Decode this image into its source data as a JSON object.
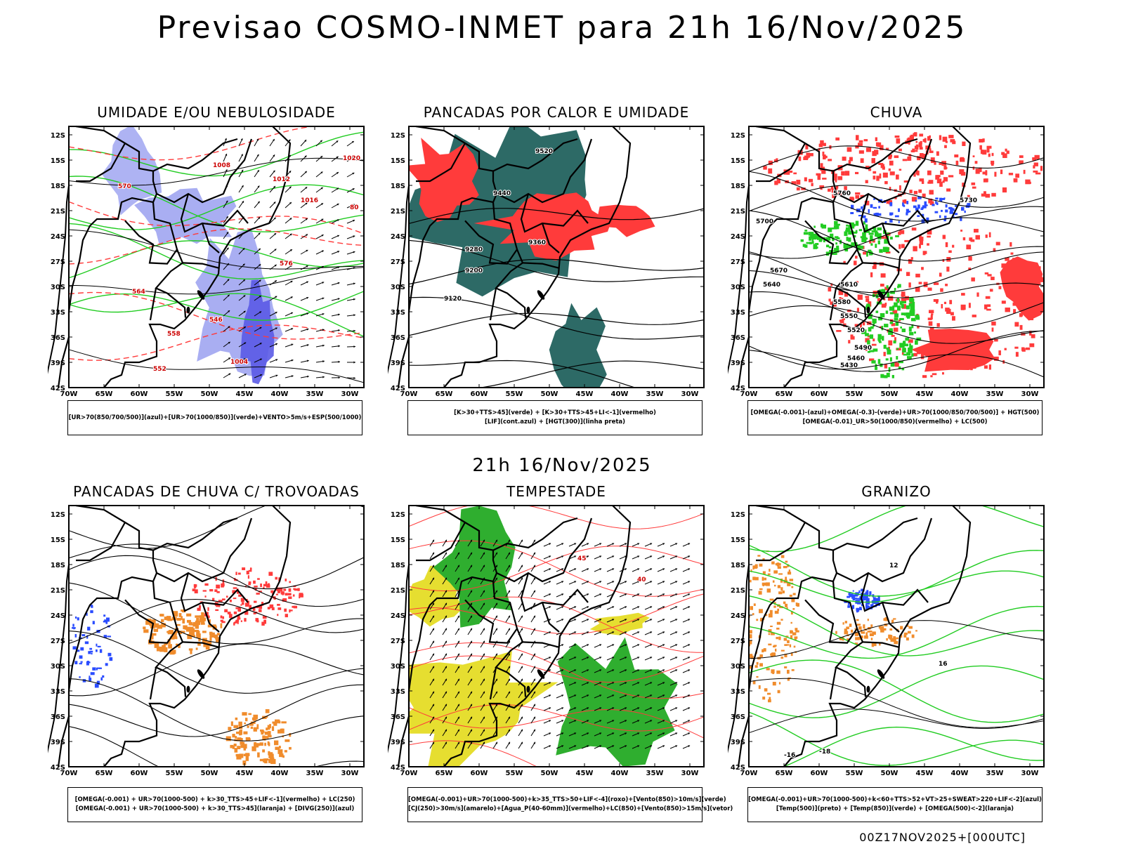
{
  "title": "Previsao COSMO-INMET  para 21h 16/Nov/2025",
  "mid_date": "21h 16/Nov/2025",
  "run_label": "00Z17NOV2025+[000UTC]",
  "lat_labels": [
    "12S",
    "15S",
    "18S",
    "21S",
    "24S",
    "27S",
    "30S",
    "33S",
    "36S",
    "39S",
    "42S"
  ],
  "lon_labels": [
    "70W",
    "65W",
    "60W",
    "55W",
    "50W",
    "45W",
    "40W",
    "35W",
    "30W"
  ],
  "colors": {
    "blue_fill": "#9aa0f0",
    "dark_blue": "#5a5ae6",
    "green": "#22cc22",
    "red": "#ff3b3b",
    "teal": "#2d6a66",
    "orange": "#f08c2c",
    "yellow": "#e6de30",
    "royal_blue": "#2a4cff"
  },
  "panels": [
    {
      "id": "umidade",
      "title": "UMIDADE E/OU NEBULOSIDADE",
      "legend": [
        "[UR>70(850/700/500)](azul)+[UR>70(1000/850)](verde)+VENTO>5m/s+ESP(500/1000)"
      ],
      "labels": [
        "1008",
        "1012",
        "1016",
        "1020",
        "1004",
        "576",
        "570",
        "564",
        "558",
        "552",
        "546",
        "80"
      ]
    },
    {
      "id": "pancadas_calor",
      "title": "PANCADAS POR CALOR E UMIDADE",
      "legend": [
        "[K>30+TTS>45](verde) + [K>30+TTS>45+LI<-1](vermelho)",
        "[LIF](cont.azul) + [HGT(300)](linha preta)"
      ],
      "labels": [
        "9520",
        "9440",
        "9360",
        "9280",
        "9200",
        "9120"
      ]
    },
    {
      "id": "chuva",
      "title": "CHUVA",
      "legend": [
        "[OMEGA(-0.001)-(azul)+OMEGA(-0.3)-(verde)+UR>70(1000/850/700/500)] + HGT(500)",
        "[OMEGA(-0.01)_UR>50(1000/850)(vermelho) + LC(500)"
      ],
      "labels": [
        "5760",
        "5730",
        "5700",
        "5670",
        "5640",
        "5610",
        "5580",
        "5550",
        "5520",
        "5490",
        "5460",
        "5430"
      ]
    },
    {
      "id": "trovoadas",
      "title": "PANCADAS DE CHUVA C/ TROVOADAS",
      "legend": [
        "[OMEGA(-0.001) + UR>70(1000-500) + k>30_TTS>45+LIF<-1](vermelho) + LC(250)",
        "[OMEGA(-0.001) + UR>70(1000-500) + k>30_TTS>45](laranja) + [DIVG(250)](azul)"
      ],
      "labels": []
    },
    {
      "id": "tempestade",
      "title": "TEMPESTADE",
      "legend": [
        "[OMEGA(-0.001)+UR>70(1000-500)+k>35_TTS>50+LIF<-4](roxo)+[Vento(850)>10m/s](verde)",
        "[CJ(250)>30m/s](amarelo)+[Agua_P(40-60mm)](vermelho)+LC(850)+[Vento(850)>15m/s](vetor)"
      ],
      "labels": [
        "40",
        "45"
      ]
    },
    {
      "id": "granizo",
      "title": "GRANIZO",
      "legend": [
        "[OMEGA(-0.001)+UR>70(1000-500)+k<60+TTS>52+VT>25+SWEAT>220+LIF<-2](azul)",
        "[Temp(500)](preto) + [Temp(850)](verde) + [OMEGA(500)<-2](laranja)"
      ],
      "labels": [
        "-16",
        "-18",
        "12",
        "16"
      ]
    }
  ]
}
